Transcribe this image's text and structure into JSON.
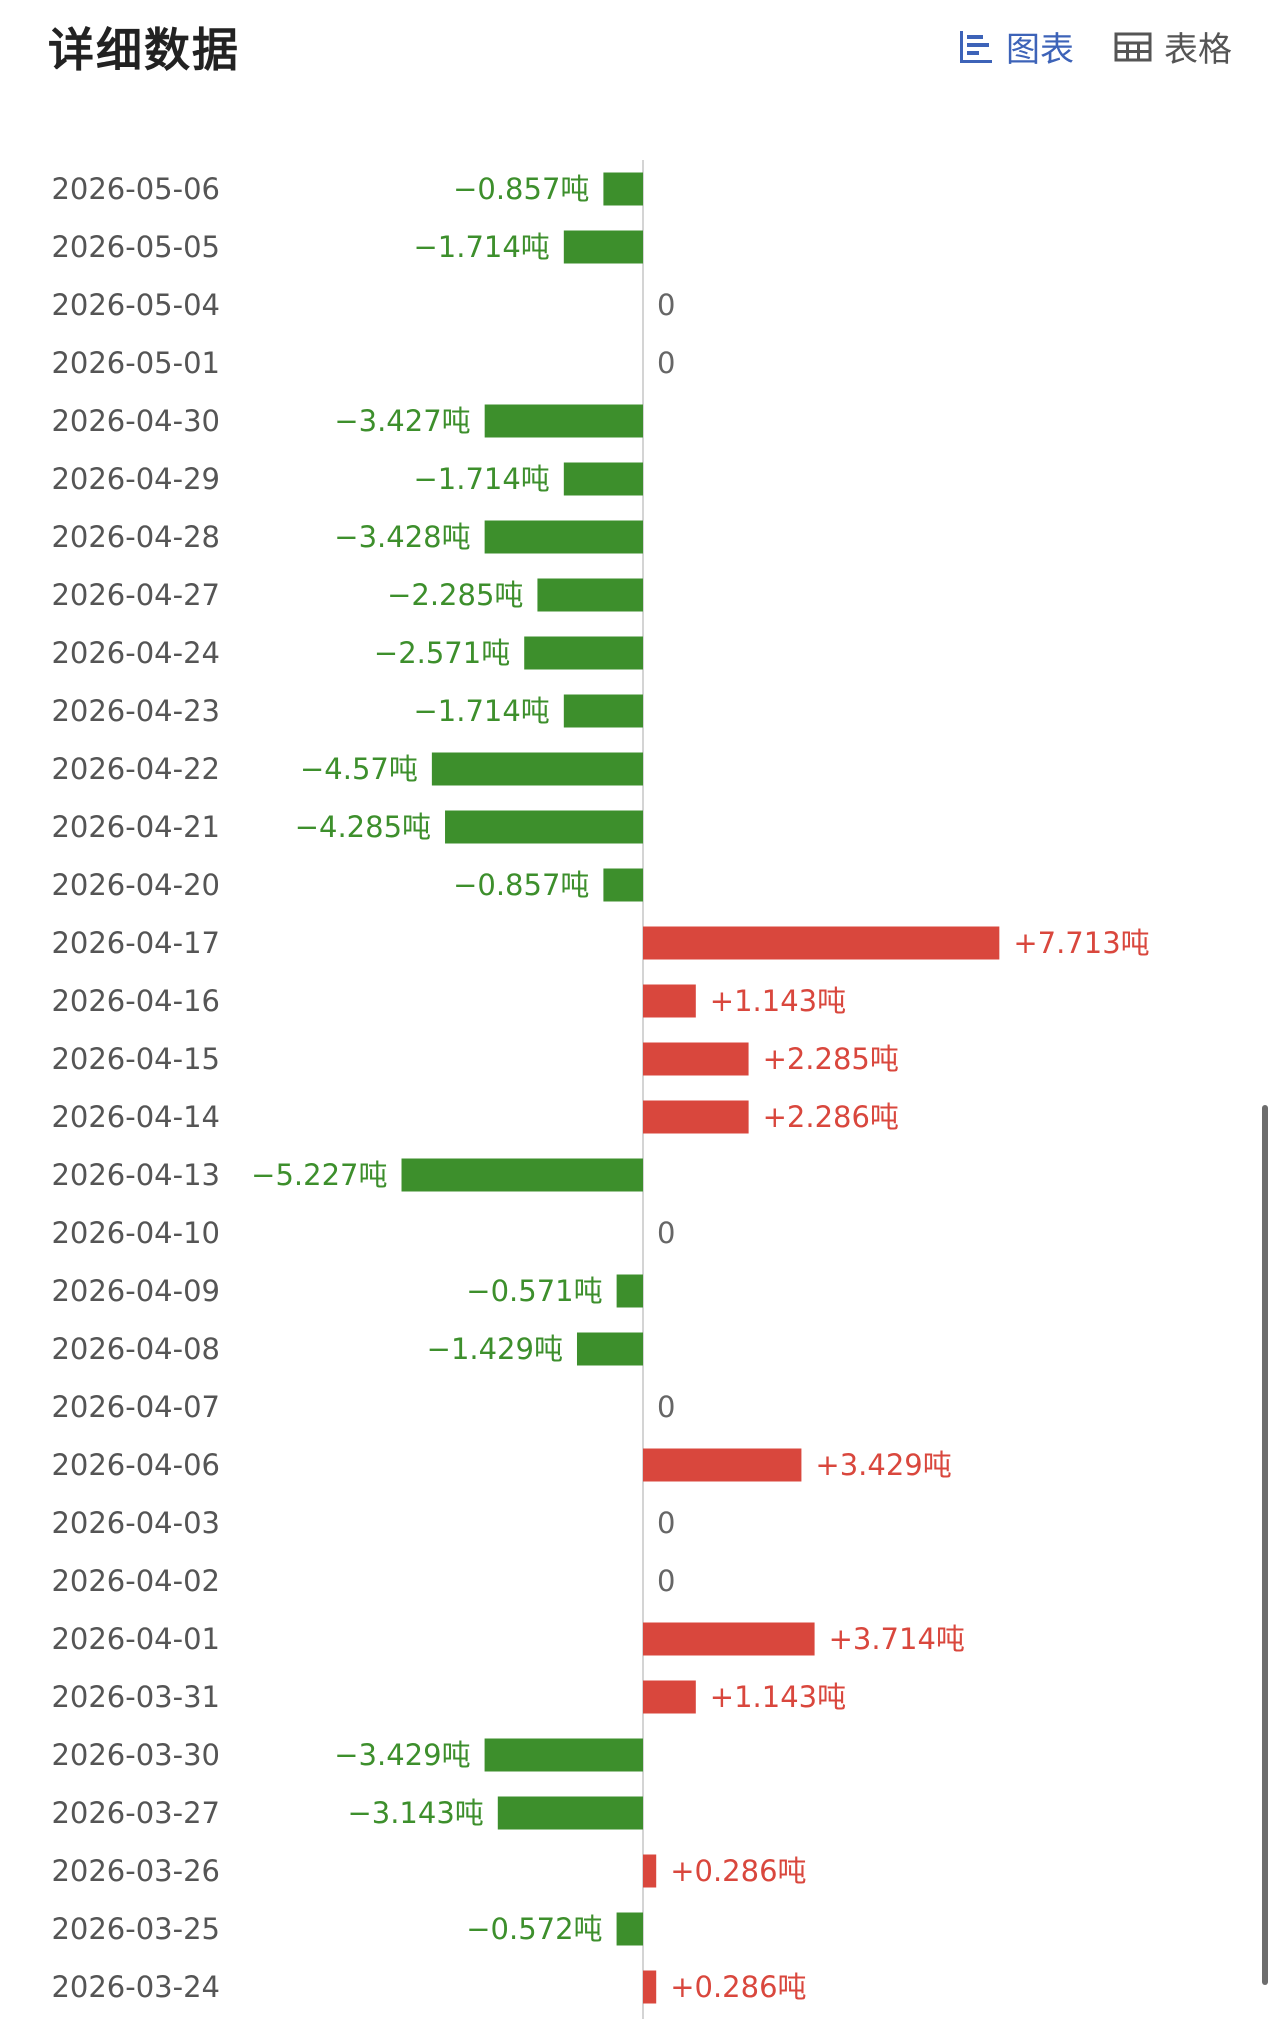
{
  "header": {
    "title": "详细数据",
    "tabs": [
      {
        "label": "图表",
        "icon": "bar-chart-icon",
        "active": true
      },
      {
        "label": "表格",
        "icon": "table-icon",
        "active": false
      }
    ]
  },
  "colors": {
    "positive": "#d9473d",
    "negative": "#3d8f2c",
    "active_tab": "#3d63b8",
    "axis": "#d4d4d4"
  },
  "chart_data": {
    "type": "bar",
    "orientation": "horizontal",
    "unit": "吨",
    "categories": [
      "2026-05-06",
      "2026-05-05",
      "2026-05-04",
      "2026-05-01",
      "2026-04-30",
      "2026-04-29",
      "2026-04-28",
      "2026-04-27",
      "2026-04-24",
      "2026-04-23",
      "2026-04-22",
      "2026-04-21",
      "2026-04-20",
      "2026-04-17",
      "2026-04-16",
      "2026-04-15",
      "2026-04-14",
      "2026-04-13",
      "2026-04-10",
      "2026-04-09",
      "2026-04-08",
      "2026-04-07",
      "2026-04-06",
      "2026-04-03",
      "2026-04-02",
      "2026-04-01",
      "2026-03-31",
      "2026-03-30",
      "2026-03-27",
      "2026-03-26",
      "2026-03-25",
      "2026-03-24"
    ],
    "values": [
      -0.857,
      -1.714,
      0,
      0,
      -3.427,
      -1.714,
      -3.428,
      -2.285,
      -2.571,
      -1.714,
      -4.57,
      -4.285,
      -0.857,
      7.713,
      1.143,
      2.285,
      2.286,
      -5.227,
      0,
      -0.571,
      -1.429,
      0,
      3.429,
      0,
      0,
      3.714,
      1.143,
      -3.429,
      -3.143,
      0.286,
      -0.572,
      0.286
    ],
    "labels": [
      "−0.857吨",
      "−1.714吨",
      "0",
      "0",
      "−3.427吨",
      "−1.714吨",
      "−3.428吨",
      "−2.285吨",
      "−2.571吨",
      "−1.714吨",
      "−4.57吨",
      "−4.285吨",
      "−0.857吨",
      "+7.713吨",
      "+1.143吨",
      "+2.285吨",
      "+2.286吨",
      "−5.227吨",
      "0",
      "−0.571吨",
      "−1.429吨",
      "0",
      "+3.429吨",
      "0",
      "0",
      "+3.714吨",
      "+1.143吨",
      "−3.429吨",
      "−3.143吨",
      "+0.286吨",
      "−0.572吨",
      "+0.286吨"
    ]
  }
}
